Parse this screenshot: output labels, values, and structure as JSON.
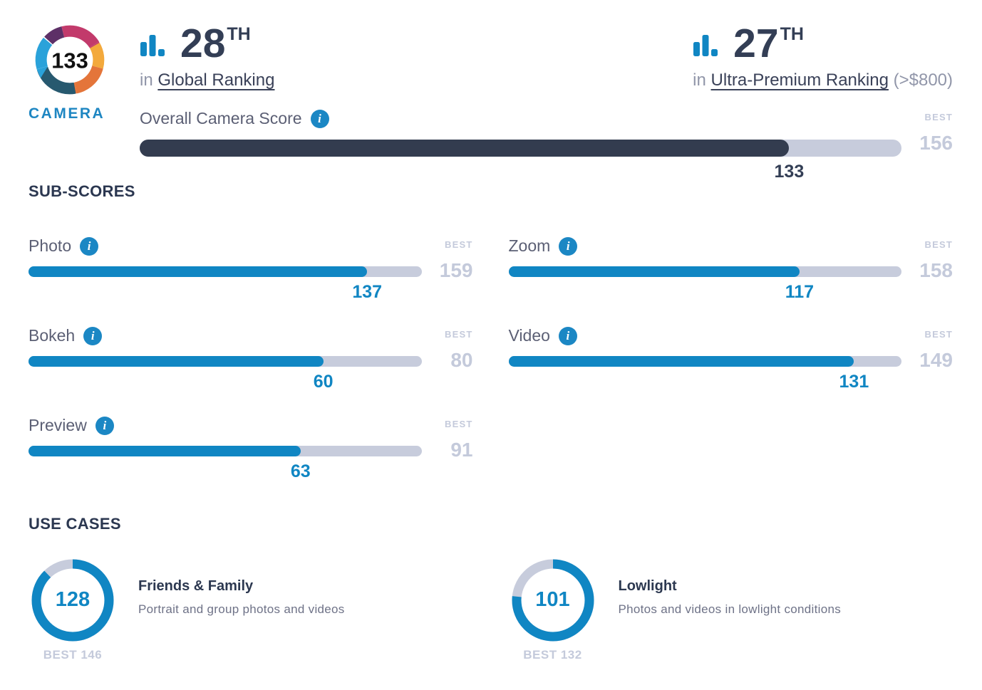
{
  "brand": {
    "score": "133",
    "label": "CAMERA"
  },
  "labels": {
    "best": "BEST"
  },
  "rankings": [
    {
      "rank": "28",
      "ordinal": "TH",
      "prefix": "in",
      "link_text": "Global Ranking",
      "suffix_note": ""
    },
    {
      "rank": "27",
      "ordinal": "TH",
      "prefix": "in",
      "link_text": "Ultra-Premium Ranking",
      "suffix_note": "(>$800)"
    }
  ],
  "overall": {
    "label": "Overall Camera Score",
    "score": 133,
    "best": 156
  },
  "sections": {
    "sub_scores": "SUB-SCORES",
    "use_cases": "USE CASES"
  },
  "sub_scores": [
    {
      "label": "Photo",
      "score": 137,
      "best": 159
    },
    {
      "label": "Zoom",
      "score": 117,
      "best": 158
    },
    {
      "label": "Bokeh",
      "score": 60,
      "best": 80
    },
    {
      "label": "Video",
      "score": 131,
      "best": 149
    },
    {
      "label": "Preview",
      "score": 63,
      "best": 91
    }
  ],
  "use_cases": [
    {
      "title": "Friends & Family",
      "description": "Portrait and group photos and videos",
      "score": 128,
      "best": 146,
      "best_label": "BEST 146"
    },
    {
      "title": "Lowlight",
      "description": "Photos and videos in lowlight conditions",
      "score": 101,
      "best": 132,
      "best_label": "BEST 132"
    }
  ],
  "colors": {
    "accent_blue": "#1086c3",
    "dark_bar": "#333c4f",
    "navy_text": "#333e55",
    "heading": "#2b3750",
    "label_slate": "#5b5f74",
    "muted_text": "#9196a9",
    "track": "#c7ccdc",
    "best_text": "#c4cadb",
    "logo_magenta": "#c23a6b",
    "logo_purple": "#5d3067",
    "logo_light_blue": "#2aa2da",
    "logo_teal": "#27596f",
    "logo_orange_top": "#f3a93c",
    "logo_orange_bottom": "#e4753a"
  },
  "chart_data": [
    {
      "type": "bar",
      "title": "Overall Camera Score",
      "orientation": "horizontal",
      "categories": [
        "Overall Camera Score"
      ],
      "series": [
        {
          "name": "score",
          "values": [
            133
          ]
        },
        {
          "name": "best",
          "values": [
            156
          ]
        }
      ],
      "xlim": [
        0,
        156
      ],
      "note": "dark bar fill = score/best of track length"
    },
    {
      "type": "bar",
      "title": "SUB-SCORES",
      "orientation": "horizontal",
      "categories": [
        "Photo",
        "Zoom",
        "Bokeh",
        "Video",
        "Preview"
      ],
      "series": [
        {
          "name": "score",
          "values": [
            137,
            117,
            60,
            131,
            63
          ]
        },
        {
          "name": "best",
          "values": [
            159,
            158,
            80,
            149,
            91
          ]
        }
      ],
      "note": "each blue bar scaled to its own best value; grid off; score labeled under fill end, best labeled at right"
    },
    {
      "type": "pie",
      "title": "USE CASES",
      "categories": [
        "Friends & Family",
        "Lowlight"
      ],
      "series": [
        {
          "name": "score",
          "values": [
            128,
            101
          ]
        },
        {
          "name": "best",
          "values": [
            146,
            132
          ]
        }
      ],
      "note": "donut gauges: blue arc = score/best starting at 12 o'clock clockwise, remainder gray"
    }
  ]
}
